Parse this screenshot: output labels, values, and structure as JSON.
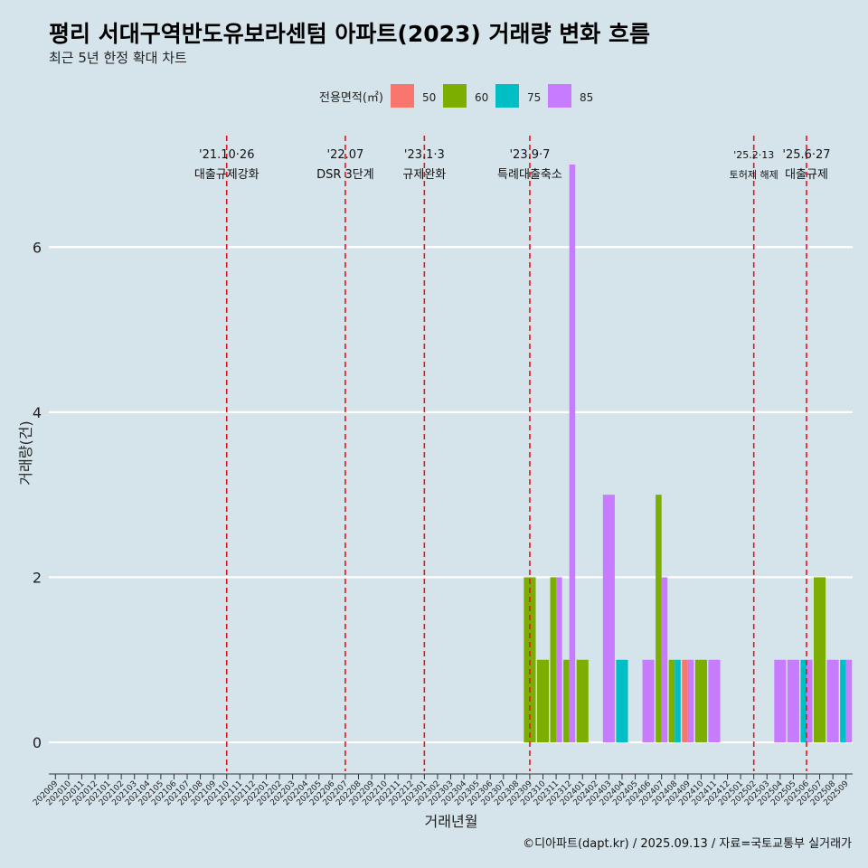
{
  "title": "평리 서대구역반도유보라센텀 아파트(2023) 거래량 변화 흐름",
  "subtitle": "최근 5년 한정 확대 차트",
  "caption": "©디아파트(dapt.kr) / 2025.09.13 / 자료=국토교통부 실거래가",
  "colors": {
    "background": "#d5e4eb",
    "gridline": "#ffffff",
    "event_line": "#e8131c",
    "50": "#f8766d",
    "60": "#7cae00",
    "75": "#00bfc4",
    "85": "#c77cff"
  },
  "chart_data": {
    "type": "bar",
    "xlabel": "거래년월",
    "ylabel": "거래량(건)",
    "ylim": [
      -0.35,
      7.35
    ],
    "yticks": [
      0,
      2,
      4,
      6
    ],
    "grid": true,
    "legend": {
      "title": "전용면적(㎡)",
      "position": "top",
      "entries": [
        "50",
        "60",
        "75",
        "85"
      ]
    },
    "categories": [
      "202009",
      "202010",
      "202011",
      "202012",
      "202101",
      "202102",
      "202103",
      "202104",
      "202105",
      "202106",
      "202107",
      "202108",
      "202109",
      "202110",
      "202111",
      "202112",
      "202201",
      "202202",
      "202203",
      "202204",
      "202205",
      "202206",
      "202207",
      "202208",
      "202209",
      "202210",
      "202211",
      "202212",
      "202301",
      "202302",
      "202303",
      "202304",
      "202305",
      "202306",
      "202307",
      "202308",
      "202309",
      "202310",
      "202311",
      "202312",
      "202401",
      "202402",
      "202403",
      "202404",
      "202405",
      "202406",
      "202407",
      "202408",
      "202409",
      "202410",
      "202411",
      "202412",
      "202501",
      "202502",
      "202503",
      "202504",
      "202505",
      "202506",
      "202507",
      "202508",
      "202509"
    ],
    "series": [
      {
        "name": "50",
        "points": [
          {
            "month": "202409",
            "value": 1
          }
        ]
      },
      {
        "name": "60",
        "points": [
          {
            "month": "202309",
            "value": 2
          },
          {
            "month": "202310",
            "value": 1
          },
          {
            "month": "202311",
            "value": 2
          },
          {
            "month": "202312",
            "value": 1
          },
          {
            "month": "202401",
            "value": 1
          },
          {
            "month": "202407",
            "value": 3
          },
          {
            "month": "202408",
            "value": 1
          },
          {
            "month": "202410",
            "value": 1
          },
          {
            "month": "202507",
            "value": 2
          }
        ]
      },
      {
        "name": "75",
        "points": [
          {
            "month": "202404",
            "value": 1
          },
          {
            "month": "202408",
            "value": 1
          },
          {
            "month": "202506",
            "value": 1
          },
          {
            "month": "202509",
            "value": 1
          }
        ]
      },
      {
        "name": "85",
        "points": [
          {
            "month": "202311",
            "value": 2
          },
          {
            "month": "202312",
            "value": 7
          },
          {
            "month": "202403",
            "value": 3
          },
          {
            "month": "202406",
            "value": 1
          },
          {
            "month": "202407",
            "value": 2
          },
          {
            "month": "202409",
            "value": 1
          },
          {
            "month": "202411",
            "value": 1
          },
          {
            "month": "202504",
            "value": 1
          },
          {
            "month": "202505",
            "value": 1
          },
          {
            "month": "202506",
            "value": 1
          },
          {
            "month": "202508",
            "value": 1
          },
          {
            "month": "202509",
            "value": 1
          }
        ]
      }
    ],
    "events": [
      {
        "month": "202110",
        "date": "'21.10·26",
        "label": "대출규제강화"
      },
      {
        "month": "202207",
        "date": "'22.07",
        "label": "DSR 3단계"
      },
      {
        "month": "202301",
        "date": "'23.1·3",
        "label": "규제완화"
      },
      {
        "month": "202309",
        "date": "'23.9·7",
        "label": "특례대출축소"
      },
      {
        "month": "202502",
        "date": "'25.2·13",
        "label": "토허제 해제"
      },
      {
        "month": "202506",
        "date": "'25.6·27",
        "label": "대출규제"
      }
    ]
  }
}
